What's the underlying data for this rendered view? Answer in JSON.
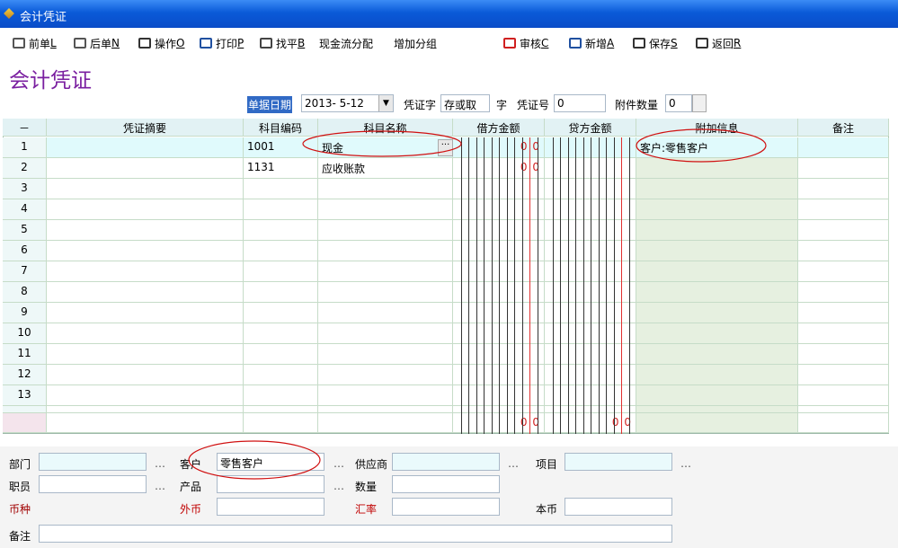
{
  "window": {
    "title": "会计凭证"
  },
  "toolbar": [
    {
      "label": "前单",
      "key": "L"
    },
    {
      "label": "后单",
      "key": "N"
    },
    {
      "label": "操作",
      "key": "O"
    },
    {
      "label": "打印",
      "key": "P"
    },
    {
      "label": "找平",
      "key": "B"
    },
    {
      "label": "现金流分配"
    },
    {
      "label": "增加分组"
    },
    {
      "label": "审核",
      "key": "C"
    },
    {
      "label": "新增",
      "key": "A"
    },
    {
      "label": "保存",
      "key": "S"
    },
    {
      "label": "返回",
      "key": "R"
    }
  ],
  "heading": "会计凭证",
  "header_form": {
    "date_label": "单据日期",
    "date": "2013- 5-12",
    "voucher_word_label": "凭证字",
    "voucher_word": "存或取",
    "word_suffix": "字",
    "voucher_no_label": "凭证号",
    "voucher_no": "0",
    "attachments_label": "附件数量",
    "attachments": "0"
  },
  "table": {
    "columns": [
      "－",
      "凭证摘要",
      "科目编码",
      "科目名称",
      "借方金额",
      "贷方金额",
      "附加信息",
      "备注"
    ],
    "rows": [
      {
        "no": 1,
        "code": "1001",
        "name": "现金",
        "debit": "0 0",
        "info": "客户:零售客户"
      },
      {
        "no": 2,
        "code": "1131",
        "name": "应收账款",
        "debit": "0 0"
      },
      {
        "no": 3
      },
      {
        "no": 4
      },
      {
        "no": 5
      },
      {
        "no": 6
      },
      {
        "no": 7
      },
      {
        "no": 8
      },
      {
        "no": 9
      },
      {
        "no": 10
      },
      {
        "no": 11
      },
      {
        "no": 12
      },
      {
        "no": 13
      }
    ],
    "totals": {
      "debit": "0 0",
      "credit": "0 0"
    }
  },
  "detail_form": {
    "rows": [
      [
        {
          "label": "部门",
          "more": "…"
        },
        {
          "label": "客户",
          "value": "零售客户",
          "more": "…"
        },
        {
          "label": "供应商",
          "more": "…"
        },
        {
          "label": "项目",
          "more": "…"
        }
      ],
      [
        {
          "label": "职员",
          "more": "…"
        },
        {
          "label": "产品",
          "more": "…"
        },
        {
          "label": "数量"
        }
      ],
      [
        {
          "label": "币种",
          "color": "#a00000",
          "input": false
        },
        {
          "label": "外币",
          "color": "#c00000"
        },
        {
          "label": "汇率",
          "color": "#c00000"
        },
        {
          "label": "本币"
        }
      ]
    ],
    "remark_label": "备注"
  }
}
